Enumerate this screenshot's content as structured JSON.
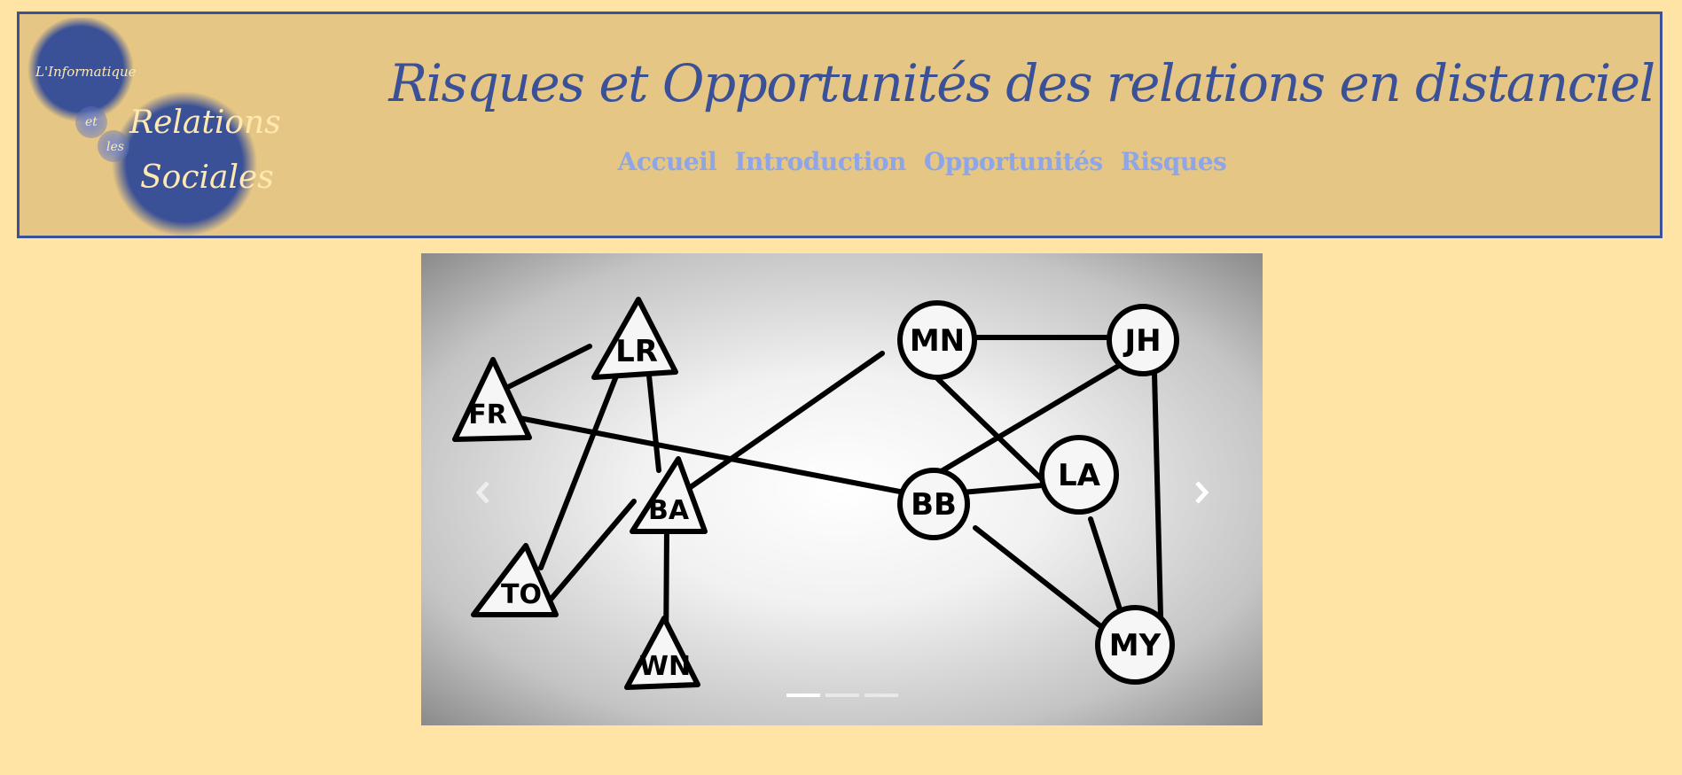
{
  "header": {
    "title": "Risques et Opportunités des relations en distanciel",
    "logo": {
      "line1": "L'Informatique",
      "line2": "et",
      "line3": "les",
      "line4": "Relations",
      "line5": "Sociales"
    }
  },
  "nav": {
    "items": [
      "Accueil",
      "Introduction",
      "Opportunités",
      "Risques"
    ]
  },
  "carousel": {
    "slide_count": 3,
    "active_index": 0,
    "nodes": {
      "triangles": [
        "LR",
        "FR",
        "BA",
        "TO",
        "WN"
      ],
      "circles": [
        "MN",
        "JH",
        "LA",
        "BB",
        "MY"
      ]
    }
  },
  "colors": {
    "page_bg": "#ffe4a6",
    "header_bg": "#e6c684",
    "accent": "#3b5197",
    "nav_link": "#8ea5e6"
  }
}
